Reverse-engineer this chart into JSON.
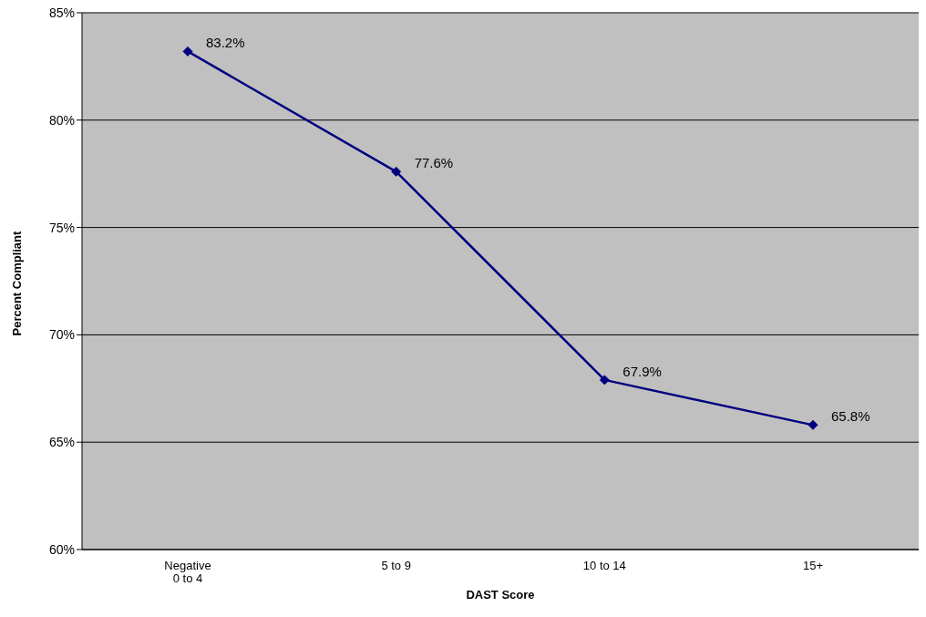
{
  "chart_data": {
    "type": "line",
    "xlabel": "DAST Score",
    "ylabel": "Percent Compliant",
    "categories": [
      "Negative\n0 to 4",
      "5 to 9",
      "10 to 14",
      "15+"
    ],
    "values": [
      83.2,
      77.6,
      67.9,
      65.8
    ],
    "value_labels": [
      "83.2%",
      "77.6%",
      "67.9%",
      "65.8%"
    ],
    "color": "#000080",
    "marker": "diamond",
    "grid": "y",
    "legend": false,
    "ylim": [
      60,
      85
    ],
    "yticks": [
      {
        "value": 60,
        "label": "60%"
      },
      {
        "value": 65,
        "label": "65%"
      },
      {
        "value": 70,
        "label": "70%"
      },
      {
        "value": 75,
        "label": "75%"
      },
      {
        "value": 80,
        "label": "80%"
      },
      {
        "value": 85,
        "label": "85%"
      }
    ]
  }
}
